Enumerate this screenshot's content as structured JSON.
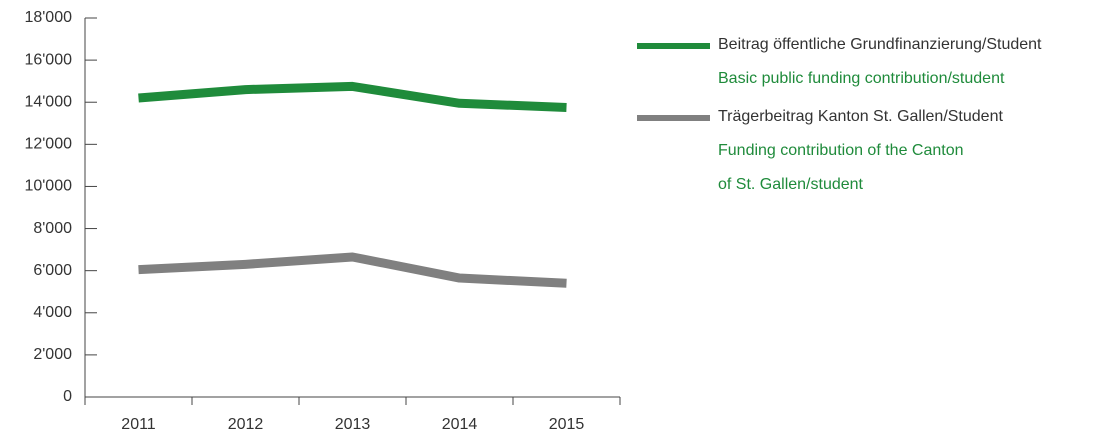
{
  "chart_data": {
    "type": "line",
    "categories": [
      "2011",
      "2012",
      "2013",
      "2014",
      "2015"
    ],
    "series": [
      {
        "name": "Beitrag öffentliche Grundfinanzierung/Student",
        "subtitle": [
          "Basic public funding contribution/student"
        ],
        "color": "#1f8b3b",
        "values": [
          14200,
          14600,
          14750,
          13950,
          13750
        ]
      },
      {
        "name": "Trägerbeitrag Kanton St. Gallen/Student",
        "subtitle": [
          "Funding contribution of the Canton",
          "of St. Gallen/student"
        ],
        "color": "#808080",
        "values": [
          6050,
          6300,
          6650,
          5650,
          5400
        ]
      }
    ],
    "ylim": [
      0,
      18000
    ],
    "yticks": [
      0,
      {
        "value": 2000,
        "label": "2'000"
      },
      {
        "value": 4000,
        "label": "4'000"
      },
      {
        "value": 6000,
        "label": "6'000"
      },
      {
        "value": 8000,
        "label": "8'000"
      },
      {
        "value": 10000,
        "label": "10'000"
      },
      {
        "value": 12000,
        "label": "12'000"
      },
      {
        "value": 14000,
        "label": "14'000"
      },
      {
        "value": 16000,
        "label": "16'000"
      },
      {
        "value": 18000,
        "label": "18'000"
      }
    ],
    "legend": "right"
  }
}
